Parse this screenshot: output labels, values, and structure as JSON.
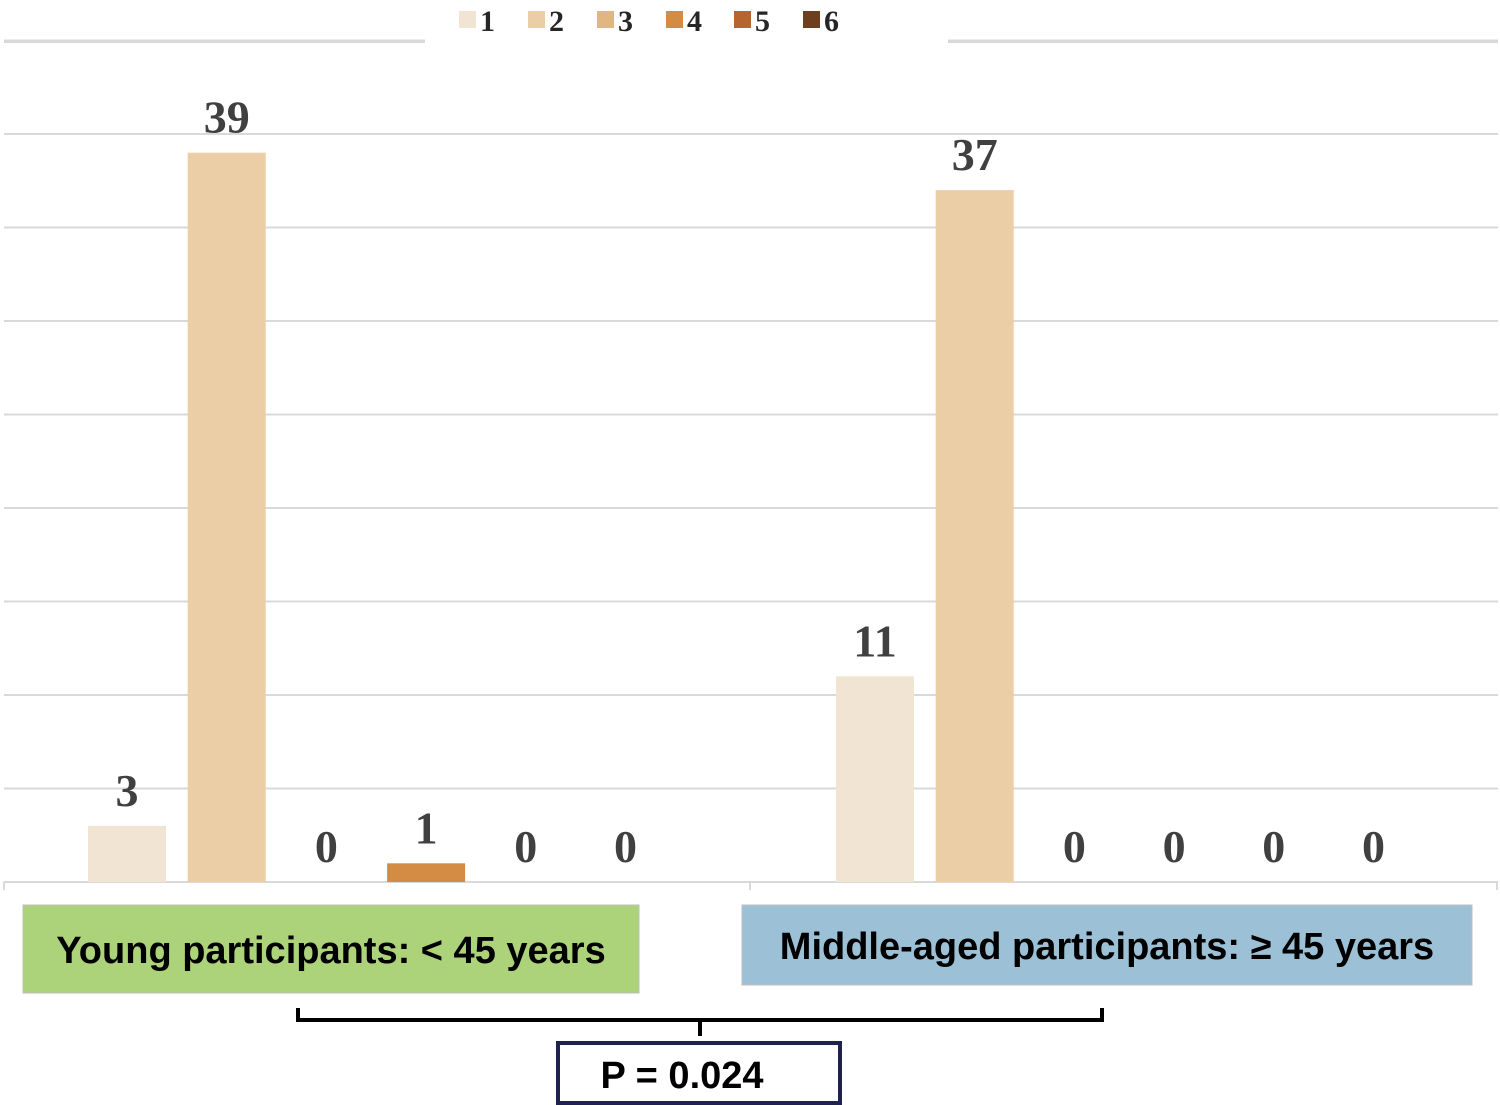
{
  "chart_data": {
    "type": "bar",
    "title": "",
    "xlabel": "",
    "ylabel": "",
    "ylim": [
      0,
      45
    ],
    "grid": true,
    "legend_position": "top",
    "series_names": [
      "1",
      "2",
      "3",
      "4",
      "5",
      "6"
    ],
    "series_colors": [
      "#f2e4d3",
      "#ebcda6",
      "#e0b683",
      "#d48c44",
      "#b7652e",
      "#6e3f1c"
    ],
    "groups": [
      {
        "label": "Young participants: < 45 years",
        "box_color": "#acd27a",
        "values": [
          3,
          39,
          0,
          1,
          0,
          0
        ],
        "bar_series": [
          0,
          1,
          2,
          3,
          4,
          5
        ]
      },
      {
        "label": "Middle-aged participants: ≥ 45 years",
        "box_color": "#9cc1d7",
        "values": [
          11,
          37,
          0,
          0,
          0,
          0
        ],
        "bar_series": [
          0,
          1,
          2,
          3,
          4,
          5
        ]
      }
    ],
    "annotation": "P = 0.024"
  }
}
